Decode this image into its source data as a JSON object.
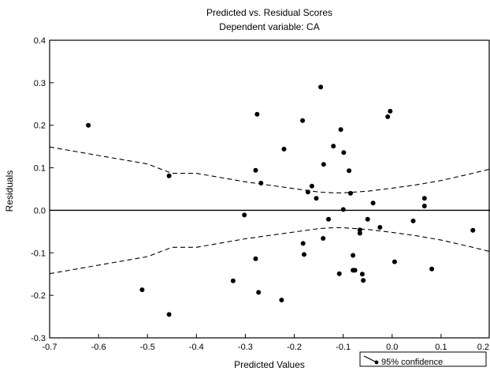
{
  "chart_data": {
    "type": "scatter",
    "title": "Predicted vs. Residual Scores",
    "subtitle": "Dependent variable: CA",
    "xlabel": "Predicted Values",
    "ylabel": "Residuals",
    "xlim": [
      -0.7,
      0.2
    ],
    "ylim": [
      -0.3,
      0.4
    ],
    "x_ticks": [
      "-0.7",
      "-0.6",
      "-0.5",
      "-0.4",
      "-0.3",
      "-0.2",
      "-0.1",
      "0.0",
      "0.1",
      "0.2"
    ],
    "y_ticks": [
      "-0.3",
      "-0.2",
      "-0.1",
      "0.0",
      "0.1",
      "0.2",
      "0.3",
      "0.4"
    ],
    "grid": false,
    "legend_position": "bottom-right",
    "legend_label": "95% confidence",
    "zero_line": 0.0,
    "confidence_band": {
      "x": [
        -0.7,
        -0.6,
        -0.5,
        -0.45,
        -0.4,
        -0.3,
        -0.2,
        -0.15,
        -0.12,
        -0.1,
        -0.05,
        0.0,
        0.05,
        0.1,
        0.15,
        0.2
      ],
      "upper": [
        0.149,
        0.129,
        0.109,
        0.087,
        0.087,
        0.067,
        0.051,
        0.043,
        0.041,
        0.041,
        0.045,
        0.052,
        0.06,
        0.07,
        0.083,
        0.097
      ],
      "lower": [
        -0.149,
        -0.129,
        -0.109,
        -0.087,
        -0.087,
        -0.067,
        -0.051,
        -0.043,
        -0.041,
        -0.041,
        -0.045,
        -0.052,
        -0.06,
        -0.07,
        -0.083,
        -0.097
      ]
    },
    "points": [
      {
        "x": -0.621,
        "y": 0.2
      },
      {
        "x": -0.456,
        "y": 0.081
      },
      {
        "x": -0.511,
        "y": -0.187
      },
      {
        "x": -0.456,
        "y": -0.245
      },
      {
        "x": -0.325,
        "y": -0.166
      },
      {
        "x": -0.302,
        "y": -0.011
      },
      {
        "x": -0.276,
        "y": 0.226
      },
      {
        "x": -0.279,
        "y": 0.094
      },
      {
        "x": -0.268,
        "y": 0.064
      },
      {
        "x": -0.279,
        "y": -0.114
      },
      {
        "x": -0.273,
        "y": -0.193
      },
      {
        "x": -0.226,
        "y": -0.211
      },
      {
        "x": -0.221,
        "y": 0.144
      },
      {
        "x": -0.183,
        "y": 0.211
      },
      {
        "x": -0.172,
        "y": 0.043
      },
      {
        "x": -0.164,
        "y": 0.057
      },
      {
        "x": -0.182,
        "y": -0.078
      },
      {
        "x": -0.18,
        "y": -0.104
      },
      {
        "x": -0.155,
        "y": 0.028
      },
      {
        "x": -0.146,
        "y": 0.29
      },
      {
        "x": -0.14,
        "y": 0.108
      },
      {
        "x": -0.141,
        "y": -0.066
      },
      {
        "x": -0.13,
        "y": -0.021
      },
      {
        "x": -0.12,
        "y": 0.151
      },
      {
        "x": -0.105,
        "y": 0.19
      },
      {
        "x": -0.099,
        "y": 0.136
      },
      {
        "x": -0.088,
        "y": 0.093
      },
      {
        "x": -0.085,
        "y": 0.04
      },
      {
        "x": -0.1,
        "y": 0.002
      },
      {
        "x": -0.108,
        "y": -0.149
      },
      {
        "x": -0.08,
        "y": -0.106
      },
      {
        "x": -0.08,
        "y": -0.141
      },
      {
        "x": -0.076,
        "y": -0.141
      },
      {
        "x": -0.066,
        "y": -0.046
      },
      {
        "x": -0.066,
        "y": -0.054
      },
      {
        "x": -0.061,
        "y": -0.15
      },
      {
        "x": -0.059,
        "y": -0.165
      },
      {
        "x": -0.05,
        "y": -0.021
      },
      {
        "x": -0.039,
        "y": 0.017
      },
      {
        "x": -0.009,
        "y": 0.22
      },
      {
        "x": -0.004,
        "y": 0.233
      },
      {
        "x": -0.025,
        "y": -0.04
      },
      {
        "x": 0.005,
        "y": -0.121
      },
      {
        "x": 0.043,
        "y": -0.025
      },
      {
        "x": 0.066,
        "y": 0.028
      },
      {
        "x": 0.066,
        "y": 0.01
      },
      {
        "x": 0.081,
        "y": -0.138
      },
      {
        "x": 0.165,
        "y": -0.047
      }
    ]
  }
}
